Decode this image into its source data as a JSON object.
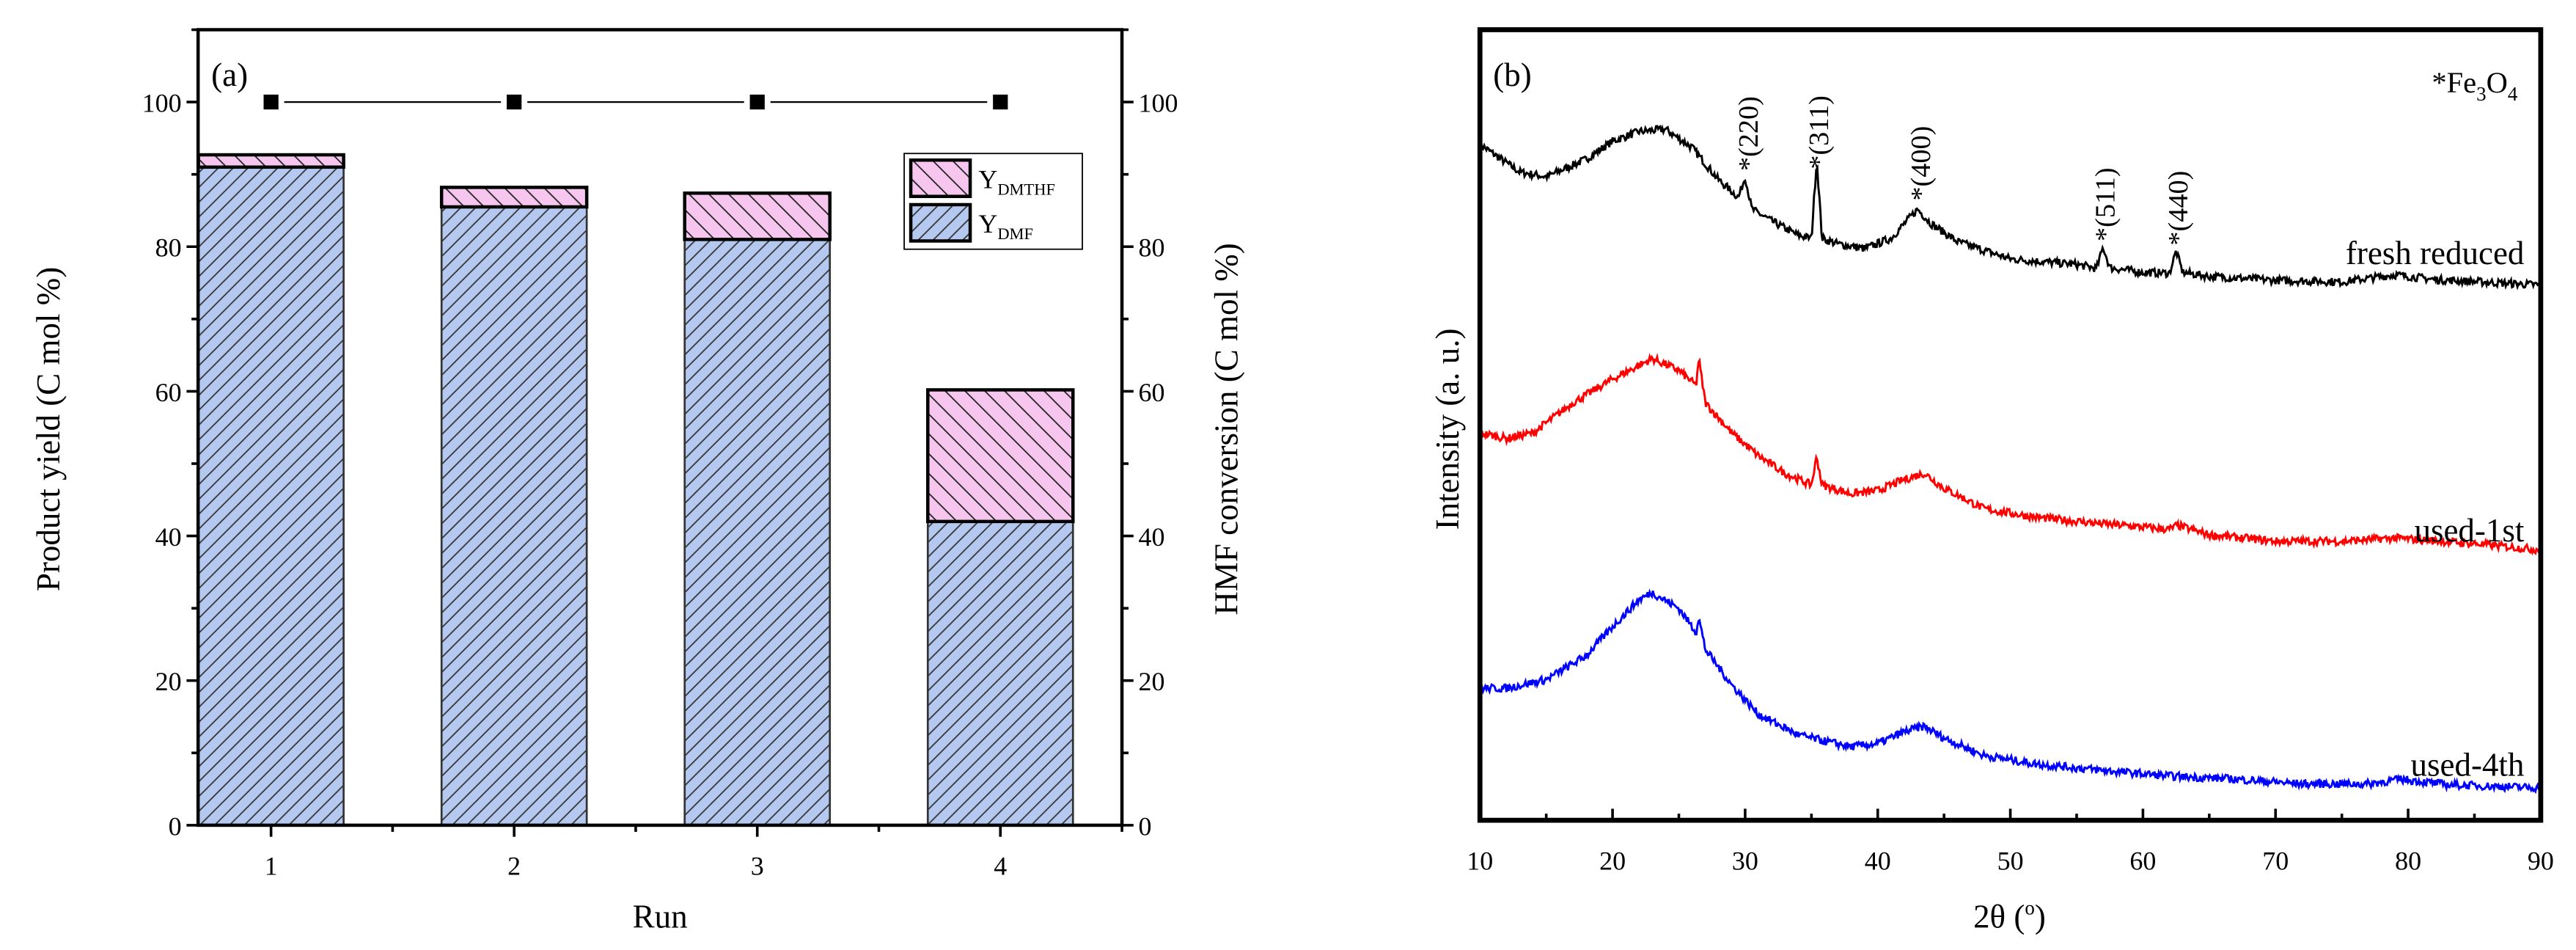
{
  "chart_data": [
    {
      "type": "bar",
      "panel_label": "(a)",
      "stacked": true,
      "categories": [
        "1",
        "2",
        "3",
        "4"
      ],
      "xlabel": "Run",
      "ylabel": "Product yield (C mol %)",
      "y2label": "HMF conversion (C mol %)",
      "ylim": [
        0,
        110
      ],
      "xlim": [
        0.7,
        4.5
      ],
      "yticks": [
        "0",
        "20",
        "40",
        "60",
        "80",
        "100"
      ],
      "y2ticks": [
        "0",
        "20",
        "40",
        "60",
        "80",
        "100"
      ],
      "series": [
        {
          "name": "Y_DMF",
          "label_main": "Y",
          "label_sub": "DMF",
          "values": [
            91.0,
            85.5,
            81.0,
            42.0
          ],
          "color": "#b4c8f0"
        },
        {
          "name": "Y_DMTHF",
          "label_main": "Y",
          "label_sub": "DMTHF",
          "values": [
            1.7,
            2.7,
            6.4,
            18.2
          ],
          "color": "#f6c6ef"
        }
      ],
      "line_series": {
        "name": "HMF conversion",
        "axis": "right",
        "values": [
          100,
          100,
          100,
          100
        ],
        "color": "#000000"
      },
      "legend_position": "top-right"
    },
    {
      "type": "line",
      "panel_label": "(b)",
      "xlabel": "2θ (",
      "xlabel_sup": "o",
      "xlabel_end": ")",
      "ylabel": "Intensity (a. u.)",
      "xlim": [
        10,
        90
      ],
      "ylim": [
        0,
        100
      ],
      "xticks": [
        "10",
        "20",
        "30",
        "40",
        "50",
        "60",
        "70",
        "80",
        "90"
      ],
      "legend": {
        "marker": "*",
        "main": "Fe",
        "sub1": "3",
        "mid": "O",
        "sub2": "4"
      },
      "annotations": [
        {
          "x": 30.2,
          "text": "*(220)"
        },
        {
          "x": 35.5,
          "text": "*(311)"
        },
        {
          "x": 43.2,
          "text": "*(400)"
        },
        {
          "x": 57.1,
          "text": "*(511)"
        },
        {
          "x": 62.6,
          "text": "*(440)"
        }
      ],
      "series": [
        {
          "name": "fresh reduced",
          "color": "#000000",
          "x": [
            10,
            13,
            15,
            18,
            20,
            22,
            24,
            26,
            28,
            29.5,
            30,
            30.5,
            32,
            34,
            35,
            35.4,
            35.8,
            37,
            39,
            41,
            43,
            44,
            46,
            50,
            55,
            56.5,
            57,
            57.5,
            60,
            62,
            62.5,
            63,
            65,
            70,
            75,
            79,
            82,
            90
          ],
          "y": [
            85.5,
            82,
            81.4,
            83.6,
            85.9,
            87.1,
            87.4,
            85.1,
            81,
            78.8,
            81.4,
            77.3,
            75.8,
            74,
            73.6,
            83.6,
            73.6,
            72.9,
            72.3,
            73.6,
            77.3,
            75.5,
            73.2,
            71,
            70.3,
            69.8,
            72.5,
            69.9,
            69.3,
            69.2,
            72,
            69.3,
            68.8,
            68.3,
            68.1,
            69,
            68.4,
            67.7
          ]
        },
        {
          "name": "used-1st",
          "color": "#ff0000",
          "x": [
            10,
            12,
            14,
            17,
            20,
            23,
            25,
            26.3,
            26.5,
            27,
            29,
            31,
            33,
            35,
            35.4,
            35.8,
            38,
            40,
            42,
            43.5,
            45,
            48,
            52,
            57,
            62,
            62.6,
            65,
            70,
            75,
            79,
            85,
            90
          ],
          "y": [
            49,
            48.3,
            49,
            52.8,
            55.8,
            58.4,
            56.9,
            55,
            58.4,
            52.8,
            49,
            46.1,
            43.9,
            42.4,
            46,
            42.4,
            41.3,
            41.7,
            43.1,
            43.9,
            42,
            39.4,
            38.3,
            37.5,
            36.8,
            37.3,
            36.1,
            35.3,
            35.3,
            35.7,
            35,
            34.2
          ]
        },
        {
          "name": "used-4th",
          "color": "#0000ff",
          "x": [
            10,
            12,
            15,
            18,
            20,
            22,
            23,
            25,
            26.3,
            26.5,
            27,
            29,
            31,
            34,
            36,
            38,
            40,
            42,
            43.5,
            45,
            48,
            52,
            57,
            62,
            67,
            72,
            77,
            79.5,
            83,
            90
          ],
          "y": [
            16.7,
            16.7,
            17.8,
            20.8,
            24.5,
            27.9,
            28.8,
            26.8,
            23.8,
            25.7,
            21.6,
            17.1,
            13.4,
            10.8,
            10,
            9.3,
            9.7,
            11.2,
            11.9,
            10.4,
            8.2,
            7.1,
            6.3,
            5.6,
            5.2,
            4.6,
            4.6,
            5.2,
            4.5,
            4.1
          ]
        }
      ]
    }
  ]
}
